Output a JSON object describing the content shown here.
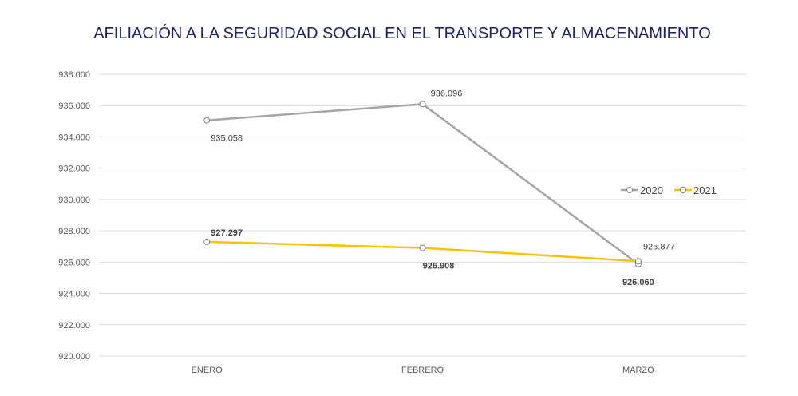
{
  "chart_data": {
    "type": "line",
    "title": "AFILIACIÓN A LA SEGURIDAD SOCIAL EN EL TRANSPORTE Y ALMACENAMIENTO",
    "categories": [
      "ENERO",
      "FEBRERO",
      "MARZO"
    ],
    "xlabel": "",
    "ylabel": "",
    "ylim": [
      920000,
      938000
    ],
    "yticks": [
      920000,
      922000,
      924000,
      926000,
      928000,
      930000,
      932000,
      934000,
      936000,
      938000
    ],
    "ytick_labels": [
      "920.000",
      "922.000",
      "924.000",
      "926.000",
      "928.000",
      "930.000",
      "932.000",
      "934.000",
      "936.000",
      "938.000"
    ],
    "grid": true,
    "legend_position": "right",
    "series": [
      {
        "name": "2020",
        "color": "#a5a5a5",
        "values": [
          935058,
          936096,
          925877
        ],
        "labels": [
          "935.058",
          "936.096",
          "925.877"
        ],
        "bold_labels": false
      },
      {
        "name": "2021",
        "color": "#ffc000",
        "values": [
          927297,
          926908,
          926060
        ],
        "labels": [
          "927.297",
          "926.908",
          "926.060"
        ],
        "bold_labels": true
      }
    ]
  }
}
